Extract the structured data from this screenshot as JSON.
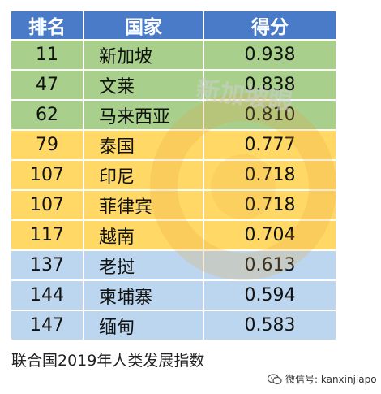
{
  "table": {
    "headers": [
      "排名",
      "国家",
      "得分"
    ],
    "rows": [
      {
        "rank": "11",
        "country": "新加坡",
        "score": "0.938",
        "group": "green"
      },
      {
        "rank": "47",
        "country": "文莱",
        "score": "0.838",
        "group": "green"
      },
      {
        "rank": "62",
        "country": "马来西亚",
        "score": "0.810",
        "group": "green"
      },
      {
        "rank": "79",
        "country": "泰国",
        "score": "0.777",
        "group": "yellow"
      },
      {
        "rank": "107",
        "country": "印尼",
        "score": "0.718",
        "group": "yellow"
      },
      {
        "rank": "107",
        "country": "菲律宾",
        "score": "0.718",
        "group": "yellow"
      },
      {
        "rank": "117",
        "country": "越南",
        "score": "0.704",
        "group": "yellow"
      },
      {
        "rank": "137",
        "country": "老挝",
        "score": "0.613",
        "group": "blue"
      },
      {
        "rank": "144",
        "country": "柬埔寨",
        "score": "0.594",
        "group": "blue"
      },
      {
        "rank": "147",
        "country": "缅甸",
        "score": "0.583",
        "group": "blue"
      }
    ]
  },
  "colors": {
    "header": "#4a7bc8",
    "green": "#a9cf8c",
    "yellow": "#ffd865",
    "blue": "#bcd6ef"
  },
  "caption": "联合国2019年人类发展指数",
  "watermark_text": "新加坡眼",
  "wechat": {
    "icon": "wechat-icon",
    "label": "微信号: kanxinjiapo"
  }
}
